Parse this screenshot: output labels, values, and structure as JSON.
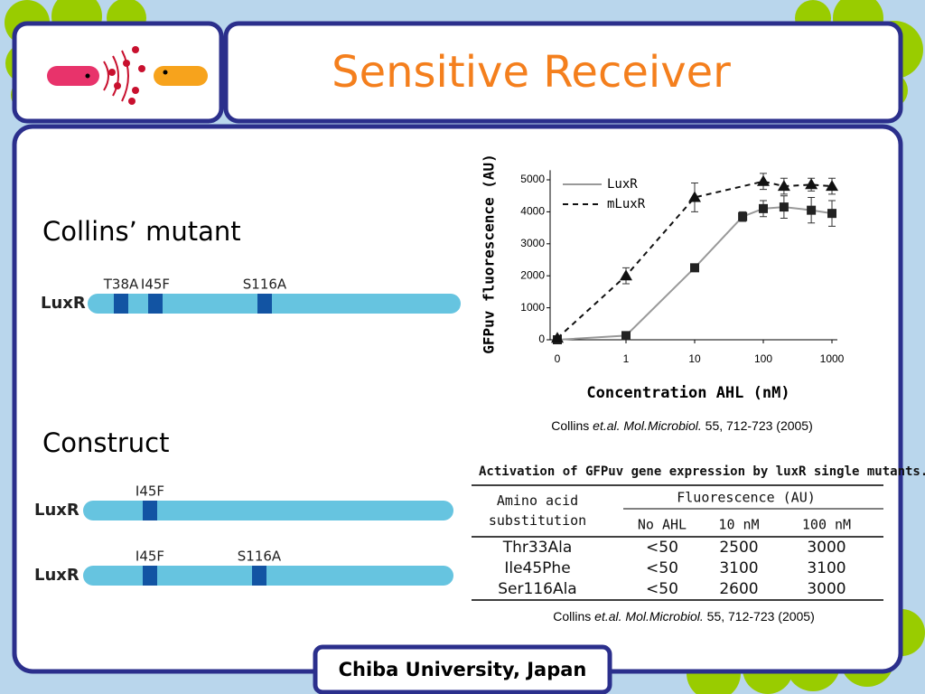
{
  "header": {
    "title": "Sensitive Receiver"
  },
  "left": {
    "mutant_heading": "Collins’ mutant",
    "construct_heading": "Construct",
    "gene_labels": [
      "LuxR",
      "LuxR",
      "LuxR"
    ],
    "mutant_sites": [
      "T38A",
      "I45F",
      "S116A"
    ],
    "construct1_sites": [
      "I45F"
    ],
    "construct2_sites": [
      "I45F",
      "S116A"
    ]
  },
  "chart_data": {
    "type": "scatter",
    "x_label": "Concentration  AHL (nM)",
    "y_label": "GFPuv fluorescence (AU)",
    "xscale": "log",
    "xlim": [
      0,
      1000
    ],
    "xticks": [
      0,
      1,
      10,
      100,
      1000
    ],
    "ylim": [
      0,
      5300
    ],
    "yticks": [
      0,
      1000,
      2000,
      3000,
      4000,
      5000
    ],
    "legend": "upper left",
    "series": [
      {
        "name": "LuxR",
        "color": "#222222",
        "marker": "square",
        "line_style": "solid",
        "line_color": "#999999",
        "x": [
          0,
          1,
          10,
          50,
          100,
          200,
          500,
          1000
        ],
        "values": [
          0,
          130,
          2250,
          3850,
          4100,
          4150,
          4050,
          3950
        ],
        "errors": [
          0,
          0,
          0,
          150,
          250,
          350,
          400,
          400
        ]
      },
      {
        "name": "mLuxR",
        "color": "#111111",
        "marker": "triangle",
        "line_style": "dashed",
        "line_color": "#111111",
        "x": [
          0,
          1,
          10,
          100,
          200,
          500,
          1000
        ],
        "values": [
          50,
          2000,
          4450,
          4950,
          4800,
          4850,
          4800
        ],
        "errors": [
          0,
          250,
          450,
          250,
          250,
          200,
          250
        ]
      }
    ]
  },
  "chart_citation": {
    "authors": "Collins",
    "etal": "et.al.",
    "journal": "Mol.Microbiol.",
    "details": "55, 712-723 (2005)"
  },
  "table": {
    "title": "Activation of GFPuv gene expression by luxR single mutants.",
    "row_header": "Amino acid substitution",
    "group_header": "Fluorescence (AU)",
    "columns": [
      "No AHL",
      "10 nM",
      "100 nM"
    ],
    "rows": [
      [
        "Thr33Ala",
        "<50",
        2500,
        3000
      ],
      [
        "Ile45Phe",
        "<50",
        3100,
        3100
      ],
      [
        "Ser116Ala",
        "<50",
        2600,
        3000
      ]
    ]
  },
  "table_citation": {
    "authors": "Collins",
    "etal": "et.al.",
    "journal": "Mol.Microbiol.",
    "details": "55, 712-723 (2005)"
  },
  "footer": "Chiba University, Japan"
}
